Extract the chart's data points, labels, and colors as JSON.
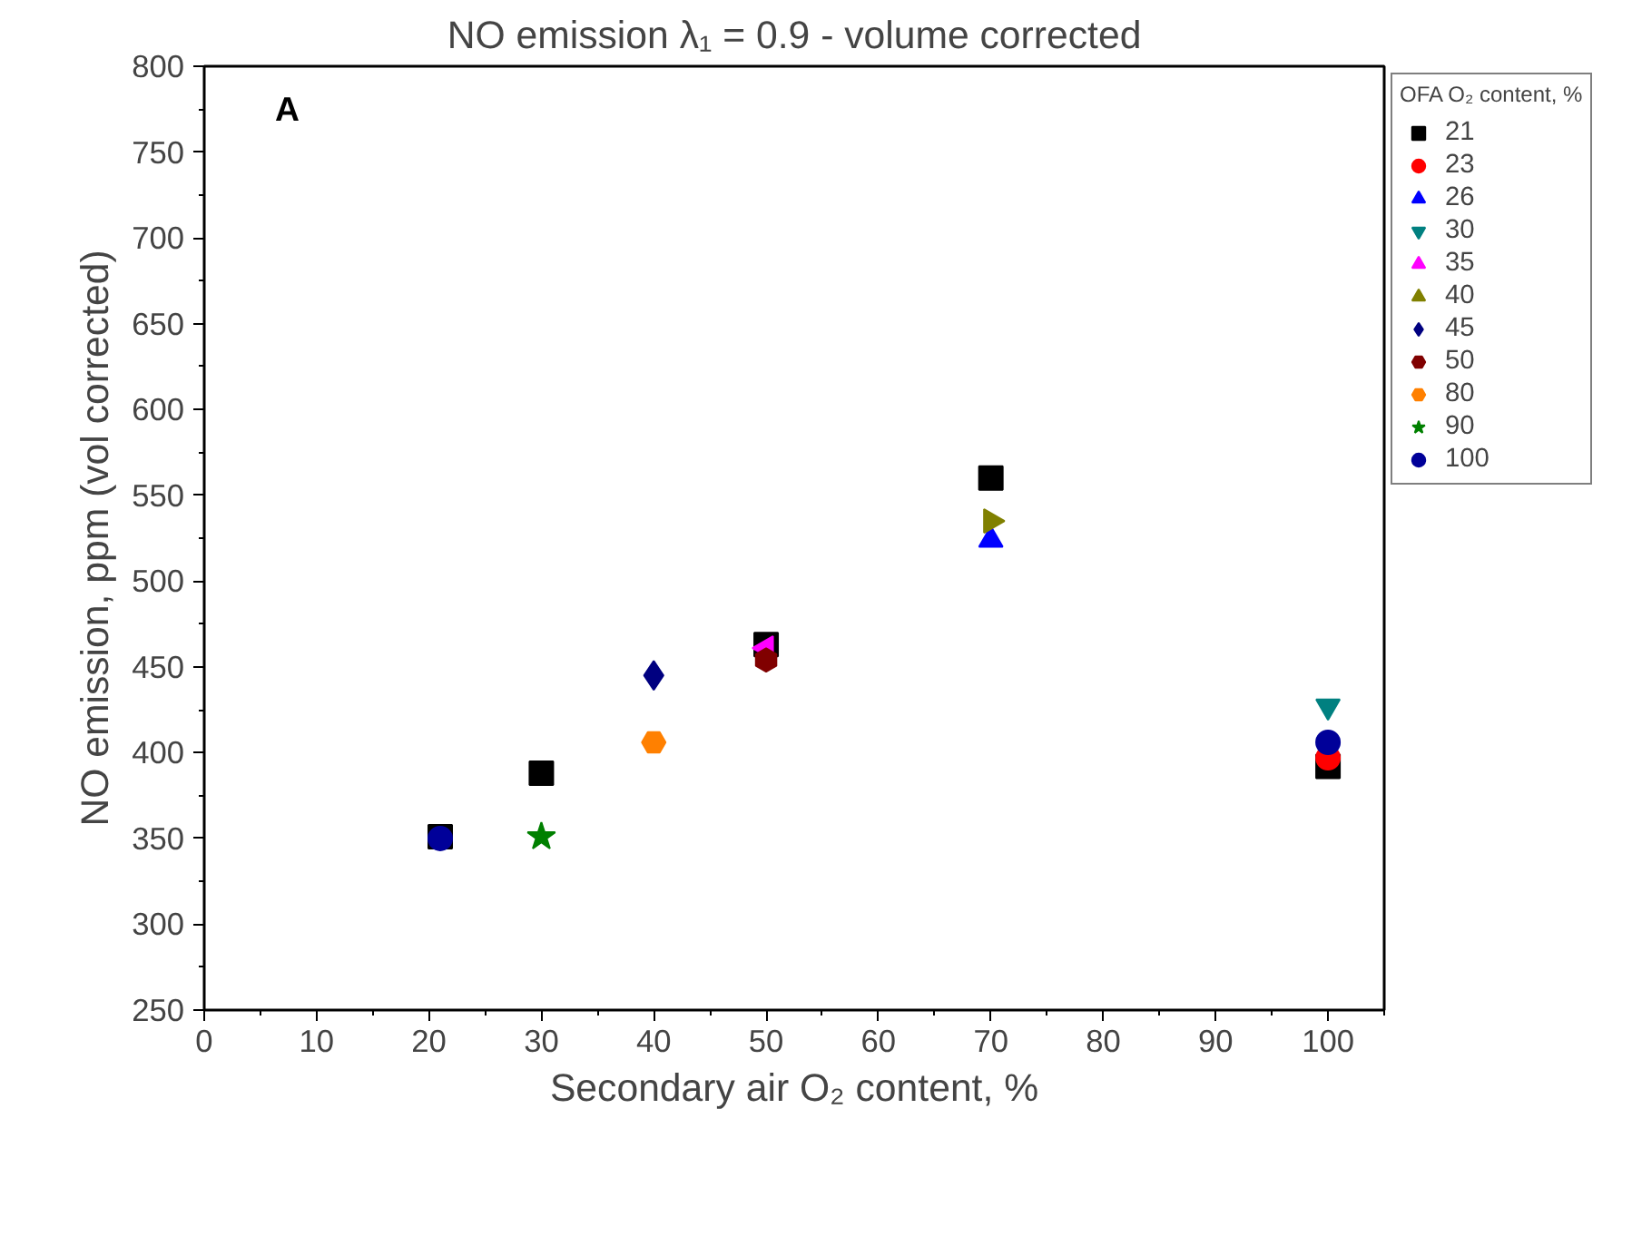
{
  "chart_data": {
    "type": "scatter",
    "title": "NO emission λ₁ = 0.9 - volume corrected",
    "xlabel": "Secondary air O₂ content, %",
    "ylabel": "NO emission, ppm (vol corrected)",
    "legend_title": "OFA O₂ content, %",
    "annotations": [
      "A"
    ],
    "xlim": [
      0,
      105
    ],
    "xticks": [
      0,
      10,
      20,
      30,
      40,
      50,
      60,
      70,
      80,
      90,
      100
    ],
    "ylim": [
      250,
      800
    ],
    "yticks": [
      250,
      300,
      350,
      400,
      450,
      500,
      550,
      600,
      650,
      700,
      750,
      800
    ],
    "grid": false,
    "legend": "right",
    "series": [
      {
        "name": "21",
        "color": "#000000",
        "marker": "square",
        "x": [
          21,
          30,
          50,
          70,
          100
        ],
        "values": [
          351,
          388,
          463,
          560,
          392
        ]
      },
      {
        "name": "23",
        "color": "#ff0000",
        "marker": "circle",
        "x": [
          100
        ],
        "values": [
          397
        ]
      },
      {
        "name": "26",
        "color": "#0000ff",
        "marker": "triangle",
        "x": [
          70
        ],
        "values": [
          524
        ]
      },
      {
        "name": "30",
        "color": "#008080",
        "x": [
          100
        ],
        "values": [
          427
        ]
      },
      {
        "name": "35",
        "color": "#ff00ff",
        "x": [
          50
        ],
        "values": [
          461
        ]
      },
      {
        "name": "40",
        "color": "#808000",
        "x": [
          70
        ],
        "values": [
          535
        ]
      },
      {
        "name": "45",
        "color": "#000080",
        "marker": "diamond",
        "x": [
          40
        ],
        "values": [
          445
        ]
      },
      {
        "name": "50",
        "color": "#800000",
        "x": [
          50
        ],
        "values": [
          454
        ]
      },
      {
        "name": "80",
        "color": "#ff8000",
        "x": [
          40
        ],
        "values": [
          406
        ]
      },
      {
        "name": "90",
        "color": "#008000",
        "marker": "star",
        "x": [
          30
        ],
        "values": [
          351
        ]
      },
      {
        "name": "100",
        "color": "#000099",
        "marker": "circle",
        "x": [
          21,
          100
        ],
        "values": [
          350,
          406
        ]
      }
    ]
  }
}
